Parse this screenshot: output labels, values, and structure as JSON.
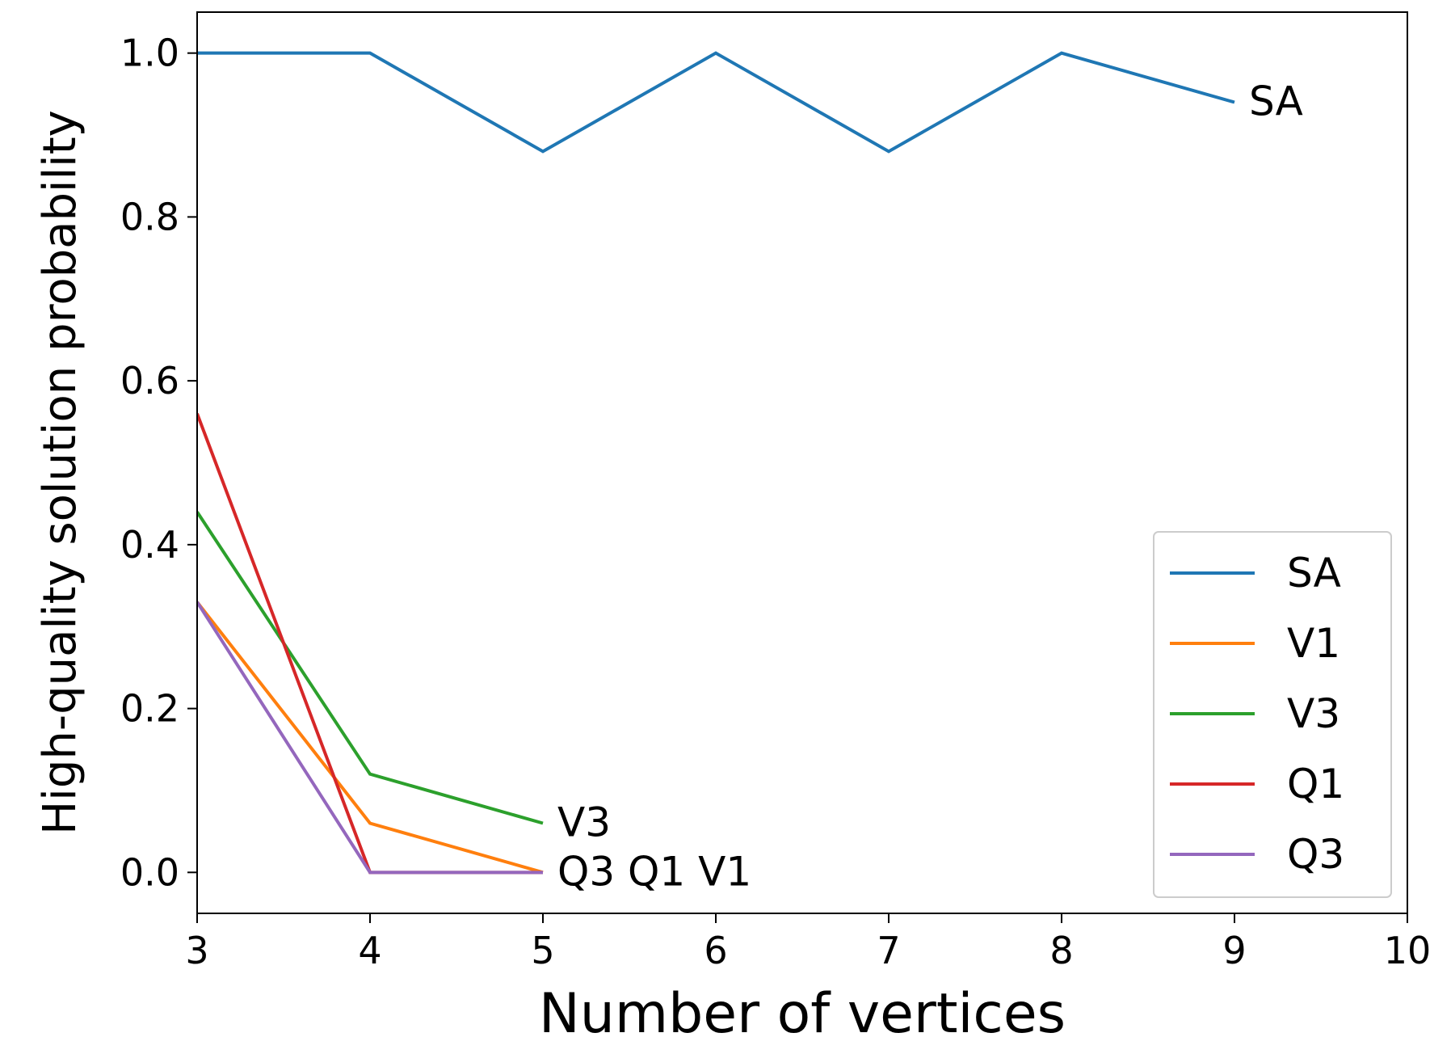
{
  "chart_data": {
    "type": "line",
    "title": "",
    "xlabel": "Number of vertices",
    "ylabel": "High-quality solution probability",
    "xlim": [
      3,
      10
    ],
    "ylim": [
      -0.05,
      1.05
    ],
    "xticks": [
      3,
      4,
      5,
      6,
      7,
      8,
      9,
      10
    ],
    "xtick_labels": [
      "3",
      "4",
      "5",
      "6",
      "7",
      "8",
      "9",
      "10"
    ],
    "yticks": [
      0.0,
      0.2,
      0.4,
      0.6,
      0.8,
      1.0
    ],
    "ytick_labels": [
      "0.0",
      "0.2",
      "0.4",
      "0.6",
      "0.8",
      "1.0"
    ],
    "grid": false,
    "legend_position": "bottom-right",
    "series": [
      {
        "name": "SA",
        "color": "#1f77b4",
        "x": [
          3,
          4,
          5,
          6,
          7,
          8,
          9
        ],
        "y": [
          1.0,
          1.0,
          0.88,
          1.0,
          0.88,
          1.0,
          0.94
        ]
      },
      {
        "name": "V1",
        "color": "#ff7f0e",
        "x": [
          3,
          4,
          5
        ],
        "y": [
          0.33,
          0.06,
          0.0
        ]
      },
      {
        "name": "V3",
        "color": "#2ca02c",
        "x": [
          3,
          4,
          5
        ],
        "y": [
          0.44,
          0.12,
          0.06
        ]
      },
      {
        "name": "Q1",
        "color": "#d62728",
        "x": [
          3,
          4,
          5
        ],
        "y": [
          0.56,
          0.0,
          0.0
        ]
      },
      {
        "name": "Q3",
        "color": "#9467bd",
        "x": [
          3,
          4,
          5
        ],
        "y": [
          0.33,
          0.0,
          0.0
        ]
      }
    ],
    "end_labels": [
      {
        "text": "SA",
        "series": "SA"
      },
      {
        "text": "V3",
        "series": "V3"
      },
      {
        "text": "Q3 Q1 V1",
        "series": "Q3"
      }
    ]
  }
}
